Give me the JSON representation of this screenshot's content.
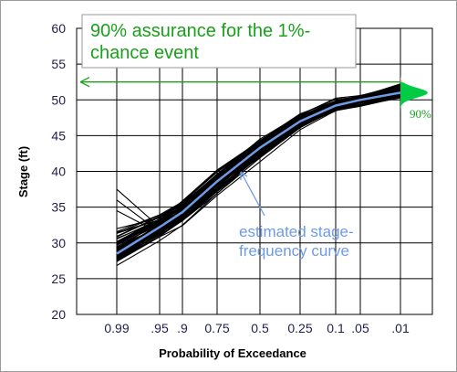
{
  "chart_data": {
    "type": "line",
    "xlabel": "Probability of Exceedance",
    "ylabel": "Stage (ft)",
    "ylim": [
      20,
      60
    ],
    "yticks": [
      20,
      25,
      30,
      35,
      40,
      45,
      50,
      55,
      60
    ],
    "x_scale": "normal-probability (reversed)",
    "xticks": [
      {
        "p": 0.99,
        "label": "0.99"
      },
      {
        "p": 0.95,
        "label": ".95"
      },
      {
        "p": 0.9,
        "label": ".9"
      },
      {
        "p": 0.75,
        "label": "0.75"
      },
      {
        "p": 0.5,
        "label": "0.5"
      },
      {
        "p": 0.25,
        "label": "0.25"
      },
      {
        "p": 0.1,
        "label": "0.1"
      },
      {
        "p": 0.05,
        "label": ".05"
      },
      {
        "p": 0.01,
        "label": ".01"
      }
    ],
    "grid": true,
    "series": [
      {
        "role": "estimated curve",
        "color": "#6f9ae6",
        "p": [
          0.99,
          0.95,
          0.9,
          0.75,
          0.5,
          0.25,
          0.1,
          0.05,
          0.01
        ],
        "stage": [
          28.5,
          32.2,
          34.3,
          38.6,
          43.3,
          47.0,
          49.2,
          50.0,
          51.0
        ]
      }
    ],
    "realizations": {
      "count_approx": 80,
      "color": "#000000",
      "spread_lower": [
        2.8,
        3.4,
        3.5,
        4.2,
        3.5,
        2.2,
        1.5,
        1.3,
        1.2
      ],
      "spread_upper": [
        9.5,
        4.5,
        4.5,
        4.0,
        3.3,
        2.5,
        2.0,
        2.0,
        3.2
      ]
    },
    "assurance": {
      "level_ft": 52.5,
      "p": 0.01,
      "label": "90%",
      "fill_color": "#00cc44",
      "tail_color": "#f2a77c"
    },
    "annotations": {
      "box_text": "90% assurance for the 1%-chance event",
      "box_color": "#1aa01a",
      "curve_label": "estimated stage-frequency curve",
      "curve_label_color": "#6f9ae6"
    }
  }
}
